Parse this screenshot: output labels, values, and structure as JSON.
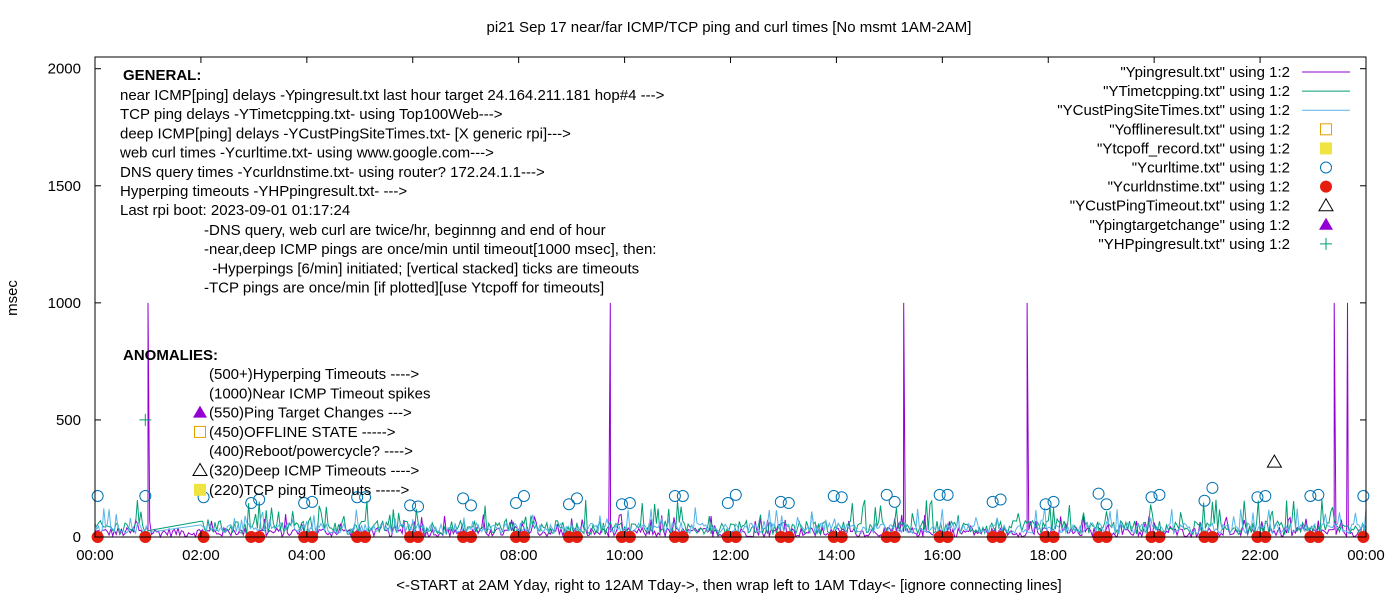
{
  "chart_data": {
    "type": "line",
    "title": "pi21 Sep 17  near/far ICMP/TCP ping and curl times [No msmt 1AM-2AM]",
    "xlabel": "<-START at 2AM Yday, right to 12AM Tday->, then wrap left to 1AM Tday<- [ignore connecting lines]",
    "ylabel": "msec",
    "xlim": [
      0,
      24
    ],
    "ylim": [
      0,
      2050
    ],
    "grid": false,
    "legend_position": "top-right",
    "x_tick_labels": [
      "00:00",
      "02:00",
      "04:00",
      "06:00",
      "08:00",
      "10:00",
      "12:00",
      "14:00",
      "16:00",
      "18:00",
      "20:00",
      "22:00",
      "00:00"
    ],
    "y_ticks": [
      0,
      500,
      1000,
      1500,
      2000
    ],
    "general_heading": "GENERAL:",
    "general_lines": [
      "near ICMP[ping] delays -Ypingresult.txt last hour target 24.164.211.181 hop#4 --->",
      "TCP ping delays -YTimetcpping.txt- using Top100Web--->",
      "deep ICMP[ping] delays -YCustPingSiteTimes.txt- [X generic rpi]--->",
      "web curl times -Ycurltime.txt- using www.google.com--->",
      "DNS query times -Ycurldnstime.txt- using router? 172.24.1.1--->",
      "Hyperping timeouts -YHPpingresult.txt- --->",
      "Last rpi boot: 2023-09-01 01:17:24"
    ],
    "general_notes": [
      "-DNS query, web curl are twice/hr, beginnng and end of hour",
      "-near,deep ICMP pings are once/min until timeout[1000 msec], then:",
      "  -Hyperpings [6/min] initiated; [vertical stacked] ticks are timeouts",
      "-TCP pings are once/min [if plotted][use Ytcpoff for timeouts]"
    ],
    "anomalies_heading": "ANOMALIES:",
    "anomalies": [
      {
        "text": "(500+)Hyperping Timeouts ---->",
        "marker": "none"
      },
      {
        "text": "(1000)Near ICMP Timeout spikes",
        "marker": "none"
      },
      {
        "text": "(550)Ping Target Changes --->",
        "marker": "filled-triangle"
      },
      {
        "text": "(450)OFFLINE STATE ----->",
        "marker": "open-square"
      },
      {
        "text": "(400)Reboot/powercycle? ---->",
        "marker": "none"
      },
      {
        "text": "(320)Deep ICMP Timeouts ---->",
        "marker": "open-triangle"
      },
      {
        "text": "(220)TCP ping Timeouts ----->",
        "marker": "filled-square"
      }
    ],
    "series": [
      {
        "name": "\"Ypingresult.txt\" using 1:2",
        "style": "line",
        "color": "#9400d3",
        "spikes": [
          1.0,
          9.73,
          15.27,
          17.6,
          23.4,
          23.65
        ],
        "baseline": [
          0,
          40
        ]
      },
      {
        "name": "\"YTimetcpping.txt\" using 1:2",
        "style": "line",
        "color": "#009e73",
        "baseline": [
          10,
          70
        ]
      },
      {
        "name": "\"YCustPingSiteTimes.txt\" using 1:2",
        "style": "line",
        "color": "#56b4e9",
        "baseline": [
          15,
          60
        ]
      },
      {
        "name": "\"Yofflineresult.txt\" using 1:2",
        "style": "open-square",
        "color": "#e69f00",
        "points": []
      },
      {
        "name": "\"Ytcpoff_record.txt\" using 1:2",
        "style": "filled-square",
        "color": "#f0e442",
        "points": []
      },
      {
        "name": "\"Ycurltime.txt\" using 1:2",
        "style": "open-circle",
        "color": "#0072b2",
        "points": [
          [
            0.05,
            175
          ],
          [
            0.95,
            175
          ],
          [
            2.05,
            170
          ],
          [
            2.95,
            145
          ],
          [
            3.1,
            160
          ],
          [
            3.95,
            145
          ],
          [
            4.1,
            150
          ],
          [
            4.95,
            170
          ],
          [
            5.1,
            170
          ],
          [
            5.95,
            135
          ],
          [
            6.1,
            130
          ],
          [
            6.95,
            165
          ],
          [
            7.1,
            135
          ],
          [
            7.95,
            145
          ],
          [
            8.1,
            175
          ],
          [
            8.95,
            140
          ],
          [
            9.1,
            165
          ],
          [
            9.95,
            140
          ],
          [
            10.1,
            145
          ],
          [
            10.95,
            175
          ],
          [
            11.1,
            175
          ],
          [
            11.95,
            145
          ],
          [
            12.1,
            180
          ],
          [
            12.95,
            150
          ],
          [
            13.1,
            145
          ],
          [
            13.95,
            175
          ],
          [
            14.1,
            170
          ],
          [
            14.95,
            180
          ],
          [
            15.1,
            150
          ],
          [
            15.95,
            180
          ],
          [
            16.1,
            180
          ],
          [
            16.95,
            150
          ],
          [
            17.1,
            160
          ],
          [
            17.95,
            140
          ],
          [
            18.1,
            150
          ],
          [
            18.95,
            185
          ],
          [
            19.1,
            140
          ],
          [
            19.95,
            170
          ],
          [
            20.1,
            180
          ],
          [
            20.95,
            155
          ],
          [
            21.1,
            210
          ],
          [
            21.95,
            170
          ],
          [
            22.1,
            175
          ],
          [
            22.95,
            175
          ],
          [
            23.1,
            180
          ],
          [
            23.95,
            175
          ]
        ]
      },
      {
        "name": "\"Ycurldnstime.txt\" using 1:2",
        "style": "filled-circle",
        "color": "#e51e10",
        "points": [
          [
            0.05,
            0
          ],
          [
            0.95,
            0
          ],
          [
            2.05,
            0
          ],
          [
            2.95,
            0
          ],
          [
            3.1,
            0
          ],
          [
            3.95,
            0
          ],
          [
            4.1,
            0
          ],
          [
            4.95,
            0
          ],
          [
            5.1,
            0
          ],
          [
            5.95,
            0
          ],
          [
            6.1,
            0
          ],
          [
            6.95,
            0
          ],
          [
            7.1,
            0
          ],
          [
            7.95,
            0
          ],
          [
            8.1,
            0
          ],
          [
            8.95,
            0
          ],
          [
            9.1,
            0
          ],
          [
            9.95,
            0
          ],
          [
            10.1,
            0
          ],
          [
            10.95,
            0
          ],
          [
            11.1,
            0
          ],
          [
            11.95,
            0
          ],
          [
            12.1,
            0
          ],
          [
            12.95,
            0
          ],
          [
            13.1,
            0
          ],
          [
            13.95,
            0
          ],
          [
            14.1,
            0
          ],
          [
            14.95,
            0
          ],
          [
            15.1,
            0
          ],
          [
            15.95,
            0
          ],
          [
            16.1,
            0
          ],
          [
            16.95,
            0
          ],
          [
            17.1,
            0
          ],
          [
            17.95,
            0
          ],
          [
            18.1,
            0
          ],
          [
            18.95,
            0
          ],
          [
            19.1,
            0
          ],
          [
            19.95,
            0
          ],
          [
            20.1,
            0
          ],
          [
            20.95,
            0
          ],
          [
            21.1,
            0
          ],
          [
            21.95,
            0
          ],
          [
            22.1,
            0
          ],
          [
            22.95,
            0
          ],
          [
            23.1,
            0
          ],
          [
            23.95,
            0
          ]
        ]
      },
      {
        "name": "\"YCustPingTimeout.txt\" using 1:2",
        "style": "open-triangle",
        "color": "#000000",
        "points": [
          [
            22.27,
            320
          ]
        ]
      },
      {
        "name": "\"Ypingtargetchange\" using 1:2",
        "style": "filled-triangle",
        "color": "#9400d3",
        "points": []
      },
      {
        "name": "\"YHPpingresult.txt\" using 1:2",
        "style": "plus",
        "color": "#009e73",
        "points": [
          [
            0.95,
            500
          ]
        ]
      }
    ]
  }
}
